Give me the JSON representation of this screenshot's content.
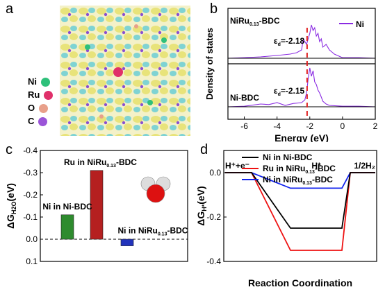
{
  "panels": [
    "a",
    "b",
    "c",
    "d"
  ],
  "legend_a": [
    {
      "label": "Ni",
      "color": "#2ec07a"
    },
    {
      "label": "Ru",
      "color": "#e0306a"
    },
    {
      "label": "O",
      "color": "#e8a08a"
    },
    {
      "label": "C",
      "color": "#9b55d8"
    }
  ],
  "chart_data": [
    {
      "panel": "b",
      "type": "line",
      "xlabel": "Energy (eV)",
      "ylabel": "Density of states",
      "xlim": [
        -7,
        2
      ],
      "xticks": [
        -6,
        -4,
        -2,
        0,
        2
      ],
      "legend": "Ni",
      "series": [
        {
          "name": "NiRu0.13-BDC",
          "label": "NiRu",
          "sub": "0.13",
          "tail": "-BDC",
          "epsilon_label": "ε",
          "epsilon_sub": "d",
          "epsilon_value": "=-2.18",
          "d_band_center": -2.18
        },
        {
          "name": "Ni-BDC",
          "label": "Ni-BDC",
          "epsilon_label": "ε",
          "epsilon_sub": "d",
          "epsilon_value": "=-2.15",
          "d_band_center": -2.15
        }
      ],
      "dos_top": [
        [
          -6.0,
          0.02
        ],
        [
          -5.0,
          0.05
        ],
        [
          -4.0,
          0.1
        ],
        [
          -3.2,
          0.15
        ],
        [
          -2.8,
          0.2
        ],
        [
          -2.5,
          0.3
        ],
        [
          -2.4,
          0.7
        ],
        [
          -2.2,
          0.5
        ],
        [
          -2.0,
          0.9
        ],
        [
          -1.9,
          1.2
        ],
        [
          -1.8,
          1.0
        ],
        [
          -1.7,
          1.1
        ],
        [
          -1.6,
          0.8
        ],
        [
          -1.5,
          0.9
        ],
        [
          -1.4,
          0.6
        ],
        [
          -1.3,
          0.7
        ],
        [
          -1.2,
          0.4
        ],
        [
          -1.0,
          0.5
        ],
        [
          -0.8,
          0.3
        ],
        [
          -0.6,
          0.2
        ],
        [
          -0.5,
          0.15
        ],
        [
          0.0,
          0.02
        ],
        [
          1.0,
          0.02
        ]
      ],
      "dos_bottom": [
        [
          -6.0,
          0.02
        ],
        [
          -5.0,
          0.1
        ],
        [
          -4.5,
          0.08
        ],
        [
          -4.0,
          0.15
        ],
        [
          -3.5,
          0.05
        ],
        [
          -3.0,
          0.12
        ],
        [
          -2.5,
          0.15
        ],
        [
          -2.3,
          0.25
        ],
        [
          -2.2,
          0.5
        ],
        [
          -2.1,
          1.0
        ],
        [
          -2.0,
          1.4
        ],
        [
          -1.9,
          1.1
        ],
        [
          -1.8,
          1.3
        ],
        [
          -1.7,
          0.9
        ],
        [
          -1.6,
          0.8
        ],
        [
          -1.5,
          0.6
        ],
        [
          -1.4,
          0.5
        ],
        [
          -1.3,
          0.35
        ],
        [
          -1.2,
          0.2
        ],
        [
          -1.0,
          0.1
        ],
        [
          -0.8,
          0.05
        ],
        [
          0.0,
          0.02
        ],
        [
          1.0,
          0.02
        ]
      ]
    },
    {
      "panel": "c",
      "type": "bar",
      "ylabel_main": "ΔG",
      "ylabel_sub": "H2O",
      "ylabel_tail": "(eV)",
      "ylim": [
        0.1,
        -0.4
      ],
      "yticks": [
        -0.4,
        -0.3,
        -0.2,
        -0.1,
        0.0,
        0.1
      ],
      "ytick_labels": [
        "-0.4",
        "-0.3",
        "-0.2",
        "-0.1",
        "0.0",
        "0.1"
      ],
      "categories": [
        "Ni in Ni-BDC",
        "Ru in NiRu0.13-BDC",
        "Ni in NiRu0.13-BDC"
      ],
      "values": [
        -0.11,
        -0.31,
        0.03
      ],
      "colors": [
        "#2e8b2e",
        "#b52020",
        "#2233bb"
      ],
      "label_parts": [
        {
          "a": "Ni in Ni-BDC",
          "sub": "",
          "b": ""
        },
        {
          "a": "Ru in NiRu",
          "sub": "0.13",
          "b": "-BDC"
        },
        {
          "a": "Ni in NiRu",
          "sub": "0.13",
          "b": "-BDC"
        }
      ]
    },
    {
      "panel": "d",
      "type": "line",
      "xlabel": "Reaction Coordination",
      "ylabel_main": "ΔG",
      "ylabel_sub": "H*",
      "ylabel_tail": "(eV)",
      "ylim": [
        -0.4,
        0.1
      ],
      "yticks": [
        0.0,
        -0.2,
        -0.4
      ],
      "ytick_labels": [
        "0.0",
        "-0.2",
        "-0.4"
      ],
      "states": [
        "H⁺+e⁻",
        "H*",
        "1/2H₂"
      ],
      "series": [
        {
          "name": "Ni in Ni-BDC",
          "color": "#000000",
          "values": [
            0,
            -0.25,
            0
          ],
          "a": "Ni in Ni-BDC",
          "sub": "",
          "b": ""
        },
        {
          "name": "Ru in NiRu0.13-BDC",
          "color": "#ee1111",
          "values": [
            0,
            -0.35,
            0
          ],
          "a": "Ru in NiRu",
          "sub": "0.13",
          "b": "-BDC"
        },
        {
          "name": "Ni in NiRu0.13-BDC",
          "color": "#1122ee",
          "values": [
            0,
            -0.07,
            0
          ],
          "a": "Ni in NiRu",
          "sub": "0.13",
          "b": "-BDC"
        }
      ]
    }
  ]
}
